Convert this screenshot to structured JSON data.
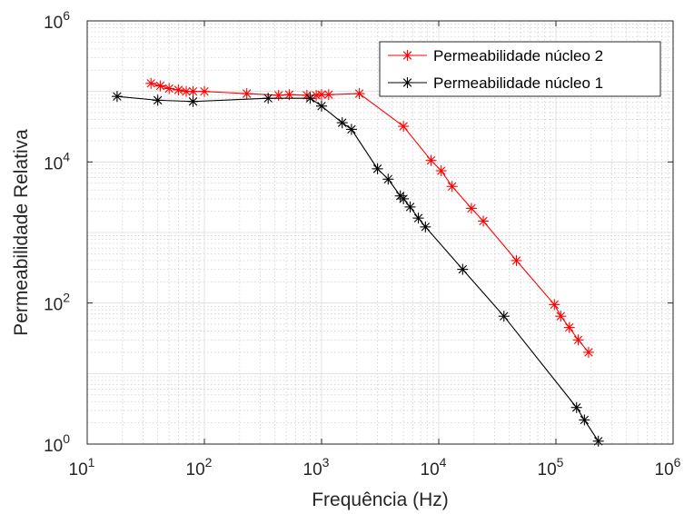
{
  "chart_data": {
    "type": "line",
    "xscale": "log",
    "yscale": "log",
    "xlim": [
      10,
      1000000
    ],
    "ylim": [
      1,
      1000000
    ],
    "xlabel": "Frequência (Hz)",
    "ylabel": "Permeabilidade Relativa",
    "grid": true,
    "legend_position": "top-right",
    "x_ticks": [
      {
        "value": 10,
        "base": "10",
        "exp": "1"
      },
      {
        "value": 100,
        "base": "10",
        "exp": "2"
      },
      {
        "value": 1000,
        "base": "10",
        "exp": "3"
      },
      {
        "value": 10000,
        "base": "10",
        "exp": "4"
      },
      {
        "value": 100000,
        "base": "10",
        "exp": "5"
      },
      {
        "value": 1000000,
        "base": "10",
        "exp": "6"
      }
    ],
    "y_ticks": [
      {
        "value": 1,
        "base": "10",
        "exp": "0"
      },
      {
        "value": 100,
        "base": "10",
        "exp": "2"
      },
      {
        "value": 10000,
        "base": "10",
        "exp": "4"
      },
      {
        "value": 1000000,
        "base": "10",
        "exp": "6"
      }
    ],
    "series": [
      {
        "name": "Permeabilidade núcleo 2",
        "color": "#ff0000",
        "marker": "asterisk",
        "x": [
          35,
          42,
          50,
          60,
          70,
          80,
          100,
          230,
          430,
          530,
          750,
          900,
          1000,
          1150,
          2100,
          5000,
          8600,
          10500,
          13000,
          19000,
          24000,
          46000,
          97000,
          110000,
          130000,
          155000,
          190000
        ],
        "y": [
          130000,
          120000,
          110000,
          105000,
          100000,
          100000,
          100000,
          93000,
          88000,
          90000,
          88000,
          88000,
          90000,
          90000,
          93000,
          32000,
          10500,
          7500,
          4500,
          2200,
          1450,
          400,
          95,
          65,
          45,
          30,
          20
        ]
      },
      {
        "name": "Permeabilidade núcleo 1",
        "color": "#000000",
        "marker": "asterisk",
        "x": [
          18,
          40,
          80,
          350,
          800,
          1000,
          1500,
          1800,
          3000,
          3700,
          4700,
          5000,
          5700,
          6700,
          7700,
          16000,
          36000,
          150000,
          175000,
          230000
        ],
        "y": [
          85000,
          75000,
          72000,
          80000,
          80000,
          62000,
          36000,
          29000,
          8000,
          5700,
          3300,
          3000,
          2300,
          1600,
          1200,
          300,
          65,
          3.3,
          2.2,
          1.1
        ]
      }
    ]
  }
}
